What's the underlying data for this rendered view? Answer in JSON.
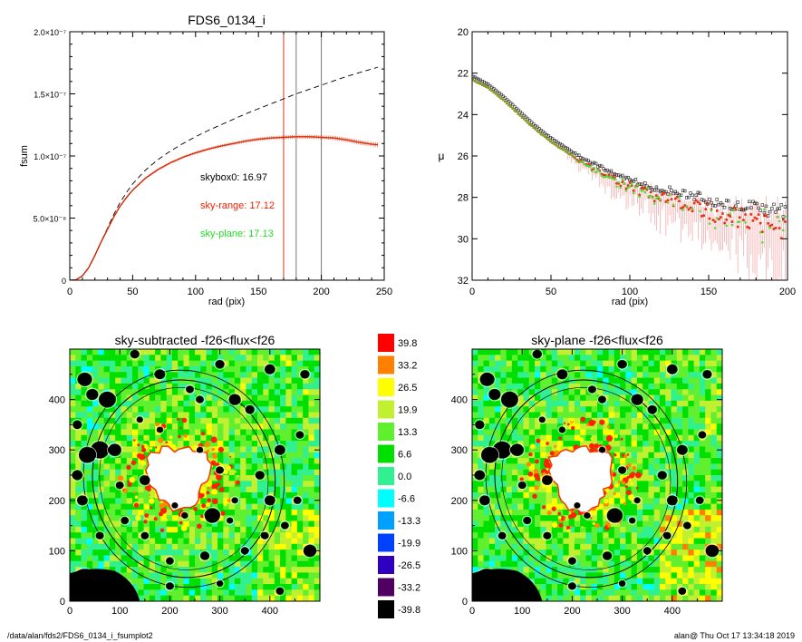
{
  "chart_data": [
    {
      "type": "line",
      "title": "FDS6_0134_i",
      "xlabel": "rad (pix)",
      "ylabel": "fsum",
      "xlim": [
        0,
        250
      ],
      "ylim": [
        0,
        2e-07
      ],
      "xticks": [
        "0",
        "50",
        "100",
        "150",
        "200",
        "250"
      ],
      "yticks": [
        {
          "value": 0,
          "label": "0"
        },
        {
          "value": 5e-08,
          "label": "5.0×10⁻⁸"
        },
        {
          "value": 1e-07,
          "label": "1.0×10⁻⁷"
        },
        {
          "value": 1.5e-07,
          "label": "1.5×10⁻⁷"
        },
        {
          "value": 2e-07,
          "label": "2.0×10⁻⁷"
        }
      ],
      "series": [
        {
          "style": "dashed",
          "color": "#000000",
          "x": [
            0,
            5,
            10,
            15,
            20,
            25,
            30,
            35,
            40,
            45,
            50,
            60,
            70,
            80,
            90,
            100,
            110,
            120,
            130,
            140,
            150,
            160,
            170,
            180,
            190,
            200,
            210,
            220,
            230,
            240,
            245
          ],
          "y": [
            0,
            3e-10,
            3.5e-09,
            1e-08,
            2e-08,
            3.1e-08,
            4.2e-08,
            5.3e-08,
            6.25e-08,
            7.05e-08,
            7.75e-08,
            8.85e-08,
            9.7e-08,
            1.04e-07,
            1.1e-07,
            1.155e-07,
            1.205e-07,
            1.25e-07,
            1.295e-07,
            1.34e-07,
            1.38e-07,
            1.42e-07,
            1.46e-07,
            1.5e-07,
            1.535e-07,
            1.57e-07,
            1.605e-07,
            1.64e-07,
            1.67e-07,
            1.7e-07,
            1.715e-07
          ]
        },
        {
          "style": "solid",
          "color": "#cc2200",
          "x": [
            0,
            5,
            10,
            15,
            20,
            25,
            30,
            35,
            40,
            45,
            50,
            60,
            70,
            80,
            90,
            100,
            110,
            120,
            130,
            140,
            150,
            160,
            170,
            180,
            190,
            200,
            210,
            220,
            230,
            240,
            245
          ],
          "y": [
            0,
            3e-10,
            3.5e-09,
            1e-08,
            2e-08,
            3.1e-08,
            4.1e-08,
            5.1e-08,
            5.95e-08,
            6.65e-08,
            7.25e-08,
            8.2e-08,
            8.9e-08,
            9.45e-08,
            9.9e-08,
            1.025e-07,
            1.055e-07,
            1.08e-07,
            1.1e-07,
            1.12e-07,
            1.135e-07,
            1.145e-07,
            1.15e-07,
            1.155e-07,
            1.155e-07,
            1.15e-07,
            1.145e-07,
            1.13e-07,
            1.11e-07,
            1.095e-07,
            1.09e-07
          ]
        }
      ],
      "vlines": [
        {
          "x": 170,
          "color": "#dd3322"
        },
        {
          "x": 180,
          "color": "#777777"
        },
        {
          "x": 200,
          "color": "#777777"
        }
      ],
      "annotations": [
        {
          "text": "skybox0: 16.97",
          "color": "#000000"
        },
        {
          "text": "sky-range: 17.12",
          "color": "#ee2200"
        },
        {
          "text": "sky-plane: 17.13",
          "color": "#22dd22"
        }
      ]
    },
    {
      "type": "scatter",
      "title": "",
      "xlabel": "rad (pix)",
      "ylabel": "μ",
      "xlim": [
        0,
        200
      ],
      "ylim": [
        32,
        20
      ],
      "xticks": [
        "0",
        "50",
        "100",
        "150",
        "200"
      ],
      "yticks": [
        "20",
        "22",
        "24",
        "26",
        "28",
        "30",
        "32"
      ],
      "profile": [
        [
          0,
          22.3
        ],
        [
          10,
          22.7
        ],
        [
          20,
          23.3
        ],
        [
          30,
          24.0
        ],
        [
          40,
          24.7
        ],
        [
          50,
          25.3
        ],
        [
          60,
          25.8
        ],
        [
          70,
          26.3
        ],
        [
          80,
          26.7
        ],
        [
          90,
          27.1
        ],
        [
          100,
          27.4
        ],
        [
          110,
          27.7
        ],
        [
          120,
          27.9
        ],
        [
          130,
          28.1
        ],
        [
          140,
          28.3
        ],
        [
          150,
          28.5
        ],
        [
          160,
          28.7
        ],
        [
          170,
          28.8
        ],
        [
          180,
          29.0
        ],
        [
          190,
          29.1
        ],
        [
          200,
          29.2
        ]
      ],
      "series": [
        {
          "color": "#000000",
          "marker": "open-square"
        },
        {
          "color": "#dd2200",
          "marker": "square"
        },
        {
          "color": "#22dd22",
          "marker": "square"
        }
      ]
    },
    {
      "type": "heatmap",
      "title": "sky-subtracted -f26<flux<f26",
      "xlim": [
        0,
        500
      ],
      "ylim": [
        0,
        500
      ],
      "xticks": [
        "0",
        "100",
        "200",
        "300",
        "400"
      ],
      "yticks": [
        "0",
        "100",
        "200",
        "300",
        "400"
      ]
    },
    {
      "type": "heatmap",
      "title": "sky-plane -f26<flux<f26",
      "xlim": [
        0,
        500
      ],
      "ylim": [
        0,
        500
      ],
      "xticks": [
        "0",
        "100",
        "200",
        "300",
        "400"
      ],
      "yticks": [
        "0",
        "100",
        "200",
        "300",
        "400"
      ]
    }
  ],
  "colorbar": {
    "labels": [
      "39.8",
      "33.2",
      "26.5",
      "19.9",
      "13.3",
      "6.6",
      "0.0",
      "-6.6",
      "-13.3",
      "-19.9",
      "-26.5",
      "-33.2",
      "-39.8"
    ],
    "colors": [
      "#ff0000",
      "#ff8000",
      "#ffff00",
      "#c0f030",
      "#60f030",
      "#00e000",
      "#30f090",
      "#00ffff",
      "#00a0ff",
      "#0040ff",
      "#3000c0",
      "#500060",
      "#000000"
    ]
  },
  "footer": {
    "left": "/data/alan/fds2/FDS6_0134_i_fsumplot2",
    "right": "alan@  Thu Oct 17 13:34:18 2019"
  }
}
